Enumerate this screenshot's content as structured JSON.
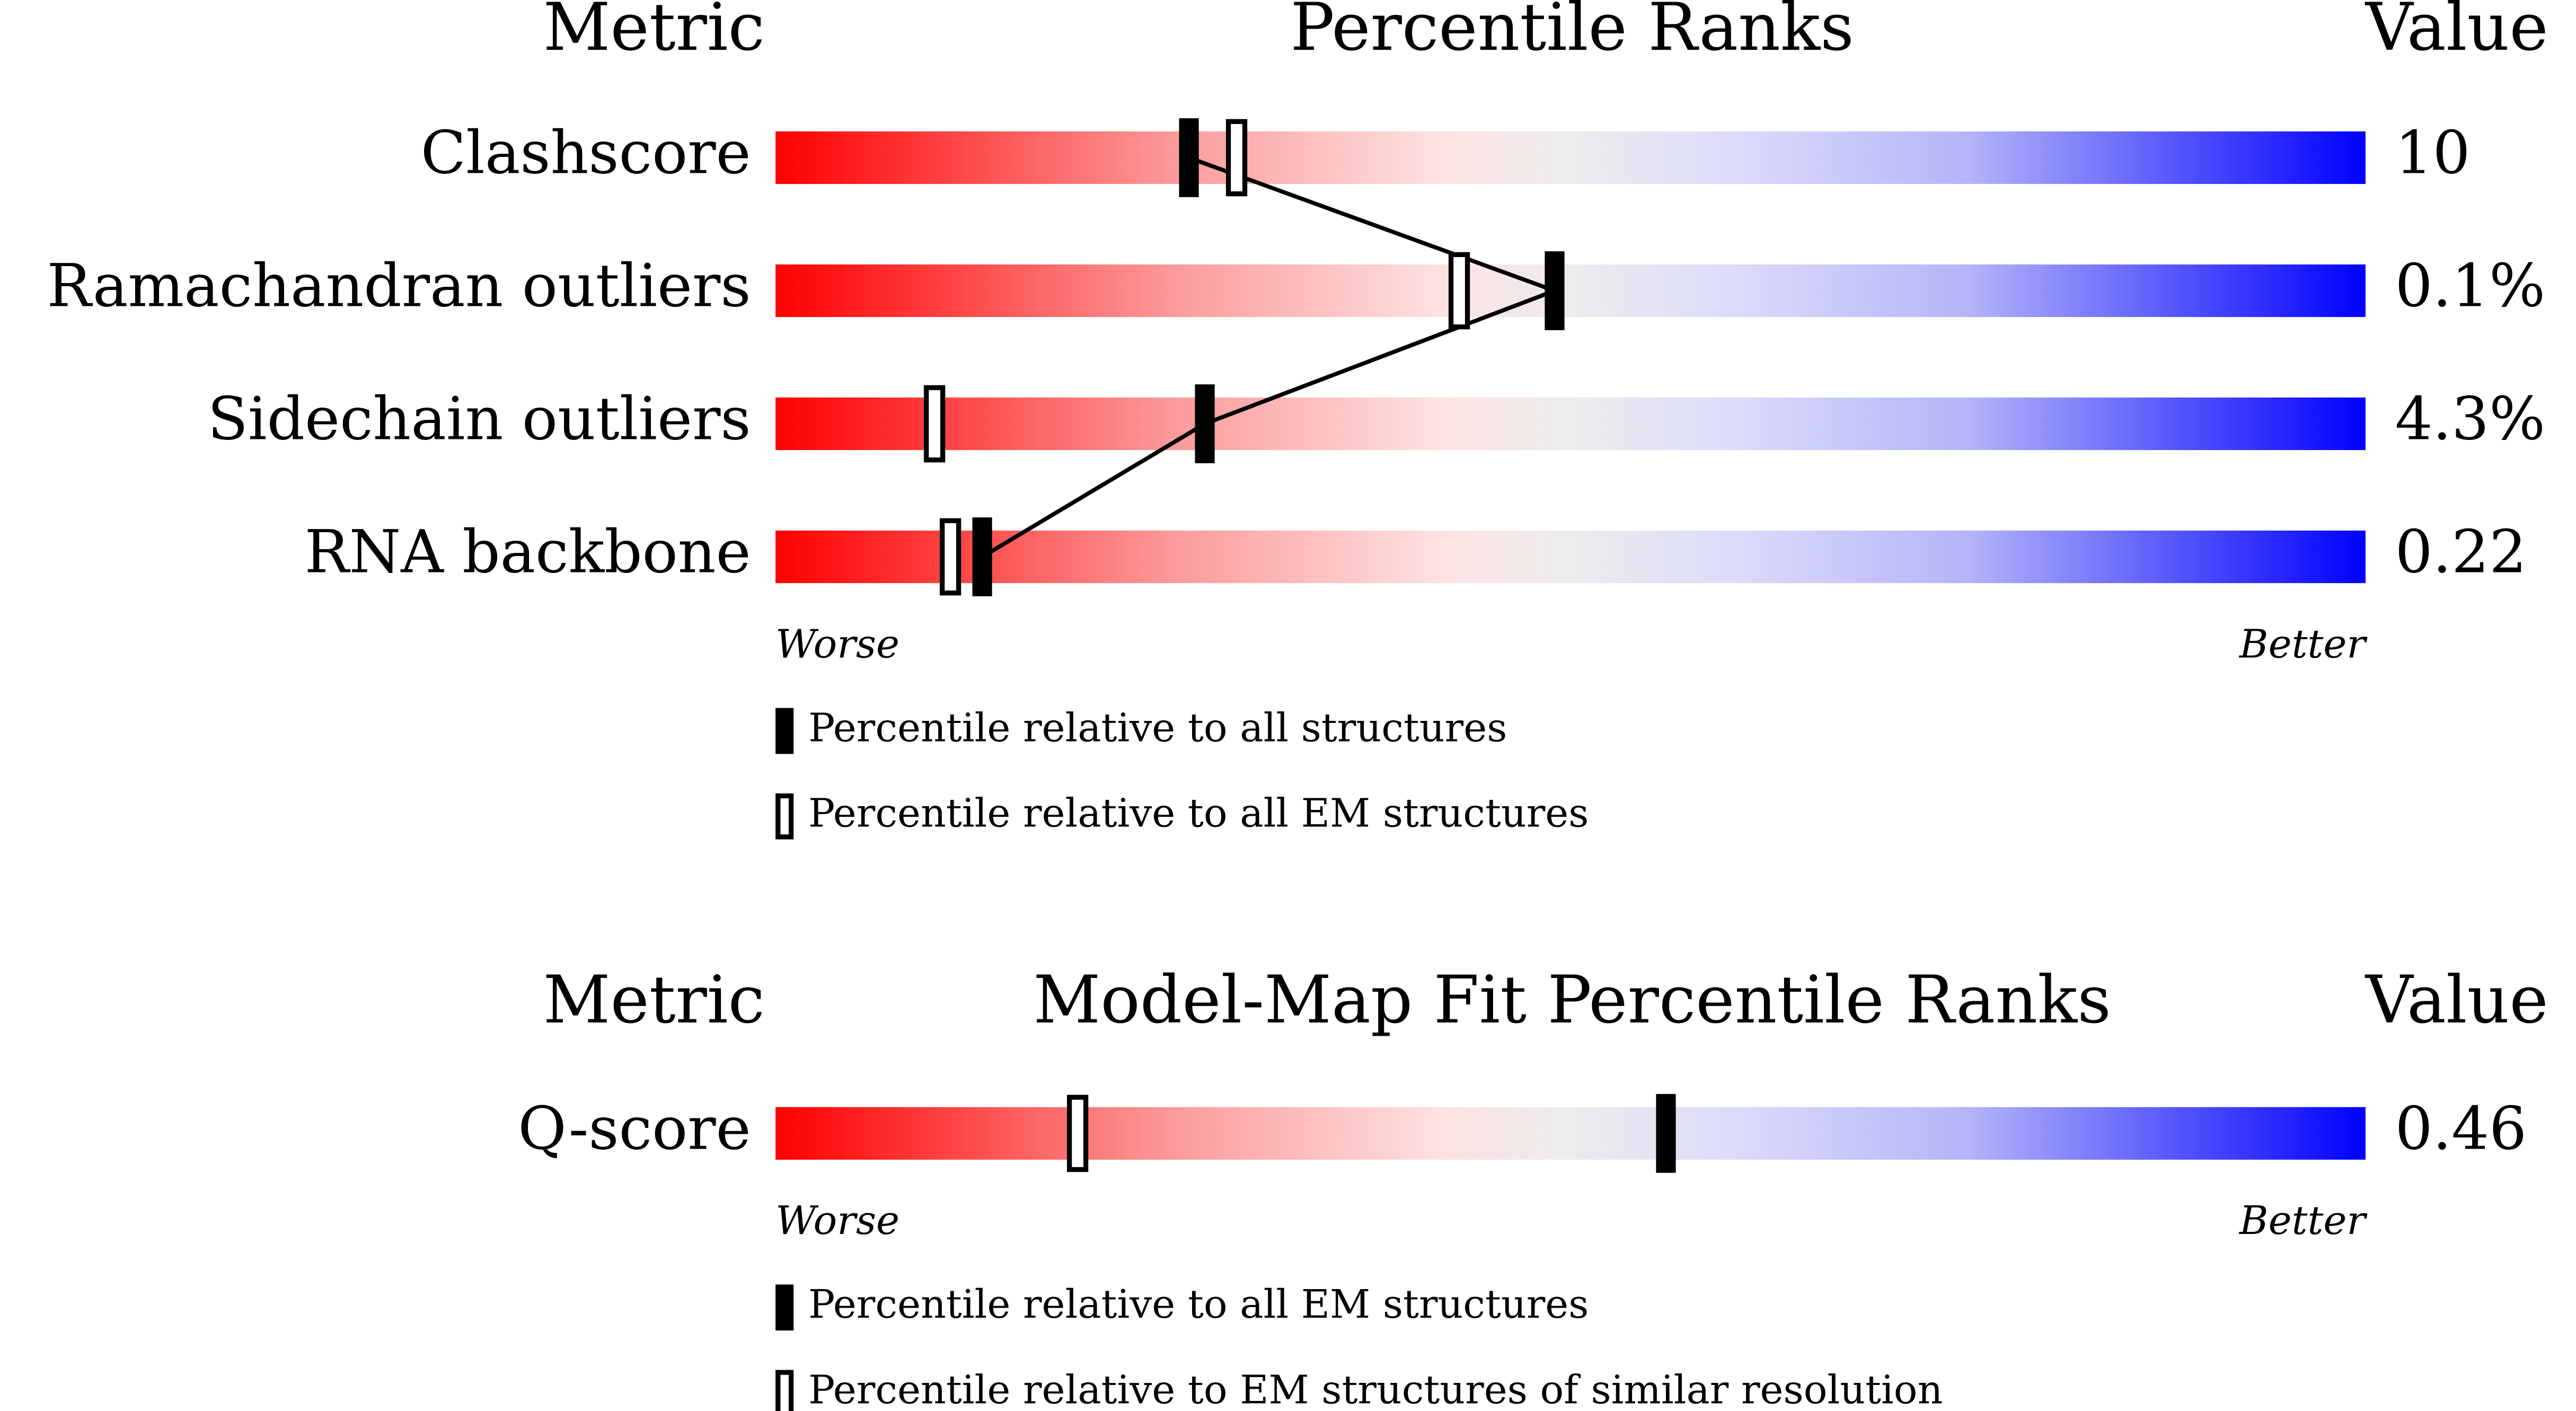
{
  "chart_data": [
    {
      "type": "percentile-slider",
      "headers": {
        "metric": "Metric",
        "title": "Percentile Ranks",
        "value": "Value"
      },
      "categories": [
        "Clashscore",
        "Ramachandran outliers",
        "Sidechain outliers",
        "RNA backbone"
      ],
      "metric_values": [
        "10",
        "0.1%",
        "4.3%",
        "0.22"
      ],
      "series": [
        {
          "name": "Percentile relative to all structures",
          "style": "filled",
          "color": "#000000",
          "values": [
            26,
            49,
            27,
            13
          ]
        },
        {
          "name": "Percentile relative to all EM structures",
          "style": "open",
          "color": "#000000",
          "values": [
            29,
            43,
            10,
            11
          ]
        }
      ],
      "xlim": [
        0,
        100
      ],
      "axis_ends": [
        "Worse",
        "Better"
      ],
      "connect_series": 0
    },
    {
      "type": "percentile-slider",
      "headers": {
        "metric": "Metric",
        "title": "Model-Map Fit Percentile Ranks",
        "value": "Value"
      },
      "categories": [
        "Q-score"
      ],
      "metric_values": [
        "0.46"
      ],
      "series": [
        {
          "name": "Percentile relative to all EM structures",
          "style": "filled",
          "color": "#000000",
          "values": [
            56
          ]
        },
        {
          "name": "Percentile relative to EM structures of similar resolution",
          "style": "open",
          "color": "#000000",
          "values": [
            19
          ]
        }
      ],
      "xlim": [
        0,
        100
      ],
      "axis_ends": [
        "Worse",
        "Better"
      ]
    }
  ]
}
